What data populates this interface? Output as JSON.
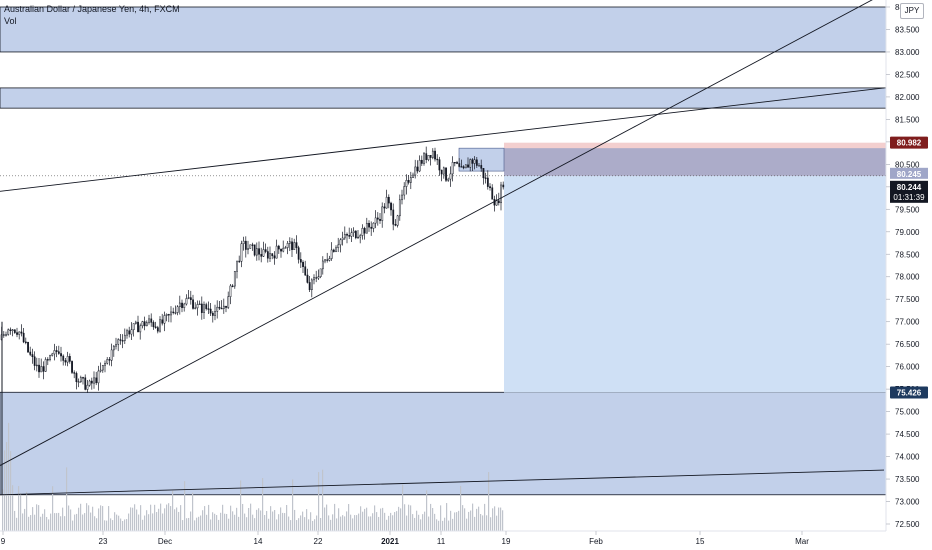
{
  "header": {
    "title": "Australian Dollar / Japanese Yen, 4h, FXCM",
    "indicator": "Vol",
    "currency": "JPY"
  },
  "colors": {
    "zone_fill": "#c2d0ea",
    "zone_stroke": "#131722",
    "stop_fill": "#f3cfcf",
    "target_fill": "#cfe0f5",
    "position_box": "#9fa6c8",
    "price_badge": "#131722",
    "stop_badge": "#7f1d1d",
    "lower_badge": "#1e3a5f",
    "candle": "#131722",
    "volume": "#c0c4cc"
  },
  "chart_data": {
    "type": "candlestick",
    "symbol": "Australian Dollar / Japanese Yen",
    "timeframe": "4h",
    "source": "FXCM",
    "ylim": [
      72.3,
      84.2
    ],
    "y_ticks": [
      "72.500",
      "73.000",
      "73.500",
      "74.000",
      "74.500",
      "75.000",
      "75.500",
      "76.000",
      "76.500",
      "77.000",
      "77.500",
      "78.000",
      "78.500",
      "79.000",
      "79.500",
      "80.000",
      "80.500",
      "81.000",
      "81.500",
      "82.000",
      "82.500",
      "83.000",
      "83.500",
      "84"
    ],
    "x_ticks": [
      "9",
      "23",
      "Dec",
      "14",
      "22",
      "2021",
      "11",
      "19",
      "Feb",
      "15",
      "Mar"
    ],
    "price_path": [
      [
        0,
        76.6
      ],
      [
        8,
        76.9
      ],
      [
        18,
        76.8
      ],
      [
        28,
        76.3
      ],
      [
        38,
        75.9
      ],
      [
        48,
        76.1
      ],
      [
        58,
        76.4
      ],
      [
        68,
        76.1
      ],
      [
        78,
        75.7
      ],
      [
        88,
        75.55
      ],
      [
        98,
        75.8
      ],
      [
        108,
        76.2
      ],
      [
        118,
        76.6
      ],
      [
        128,
        76.8
      ],
      [
        138,
        76.9
      ],
      [
        148,
        77.0
      ],
      [
        158,
        76.9
      ],
      [
        168,
        77.1
      ],
      [
        178,
        77.4
      ],
      [
        188,
        77.5
      ],
      [
        198,
        77.3
      ],
      [
        208,
        77.3
      ],
      [
        218,
        77.2
      ],
      [
        228,
        77.5
      ],
      [
        235,
        78.2
      ],
      [
        242,
        78.7
      ],
      [
        252,
        78.6
      ],
      [
        262,
        78.5
      ],
      [
        272,
        78.5
      ],
      [
        282,
        78.7
      ],
      [
        292,
        78.7
      ],
      [
        300,
        78.4
      ],
      [
        308,
        77.7
      ],
      [
        318,
        78.1
      ],
      [
        328,
        78.5
      ],
      [
        338,
        78.8
      ],
      [
        348,
        78.9
      ],
      [
        358,
        79.0
      ],
      [
        368,
        79.1
      ],
      [
        378,
        79.3
      ],
      [
        386,
        79.7
      ],
      [
        394,
        79.2
      ],
      [
        402,
        79.8
      ],
      [
        410,
        80.3
      ],
      [
        418,
        80.5
      ],
      [
        426,
        80.7
      ],
      [
        432,
        80.8
      ],
      [
        438,
        80.5
      ],
      [
        446,
        80.2
      ],
      [
        454,
        80.5
      ],
      [
        462,
        80.3
      ],
      [
        470,
        80.6
      ],
      [
        478,
        80.5
      ],
      [
        484,
        80.2
      ],
      [
        490,
        79.9
      ],
      [
        496,
        79.6
      ],
      [
        500,
        79.9
      ],
      [
        504,
        80.24
      ]
    ],
    "current_price": "80.244",
    "countdown": "01:31:39",
    "position_label": "80.245",
    "stop_label": "80.982",
    "target_label": "75.426",
    "levels": {
      "entry": 80.245,
      "stop": 80.982,
      "target": 75.426
    },
    "zones": [
      {
        "from": 83.0,
        "to": 84.0
      },
      {
        "from": 81.75,
        "to": 82.2
      },
      {
        "from": 73.15,
        "to": 75.43
      }
    ],
    "trendlines": [
      {
        "x1": 0,
        "y1": 79.9,
        "x2": 884,
        "y2": 82.2
      },
      {
        "x1": 0,
        "y1": 73.8,
        "x2": 884,
        "y2": 84.3
      },
      {
        "x1": 0,
        "y1": 73.15,
        "x2": 884,
        "y2": 73.7
      }
    ]
  }
}
